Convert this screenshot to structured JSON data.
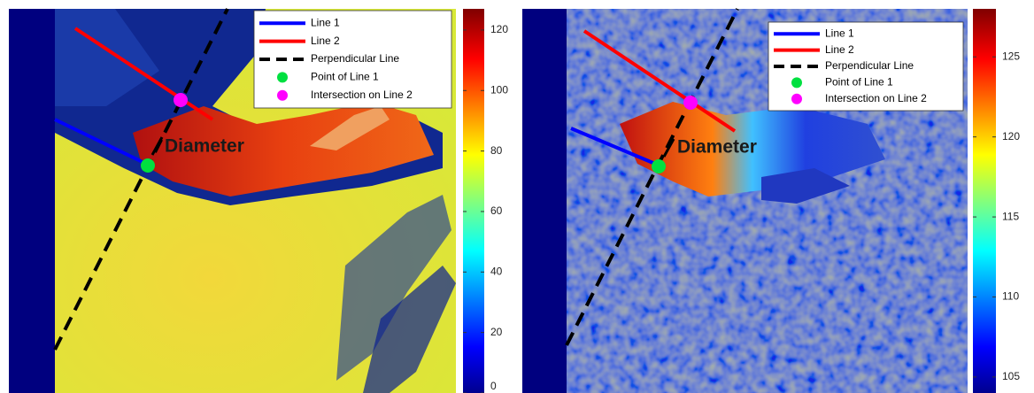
{
  "panels": [
    {
      "legend": [
        {
          "label": "Line 1",
          "color": "#0000ff",
          "kind": "line"
        },
        {
          "label": "Line 2",
          "color": "#ff0000",
          "kind": "line"
        },
        {
          "label": "Perpendicular Line",
          "color": "#000000",
          "kind": "dash"
        },
        {
          "label": "Point of Line 1",
          "color": "#00e040",
          "kind": "dot"
        },
        {
          "label": "Intersection on Line 2",
          "color": "#ff00ff",
          "kind": "dot"
        }
      ],
      "annotation": "Diameter",
      "colorbar": {
        "lim": [
          0,
          127
        ],
        "ticks": [
          0,
          20,
          40,
          60,
          80,
          100,
          120
        ]
      }
    },
    {
      "legend": [
        {
          "label": "Line 1",
          "color": "#0000ff",
          "kind": "line"
        },
        {
          "label": "Line 2",
          "color": "#ff0000",
          "kind": "line"
        },
        {
          "label": "Perpendicular Line",
          "color": "#000000",
          "kind": "dash"
        },
        {
          "label": "Point of Line 1",
          "color": "#00e040",
          "kind": "dot"
        },
        {
          "label": "Intersection on Line 2",
          "color": "#ff00ff",
          "kind": "dot"
        }
      ],
      "annotation": "Diameter",
      "colorbar": {
        "lim": [
          104,
          128
        ],
        "ticks": [
          105,
          110,
          115,
          120,
          125
        ]
      }
    }
  ]
}
